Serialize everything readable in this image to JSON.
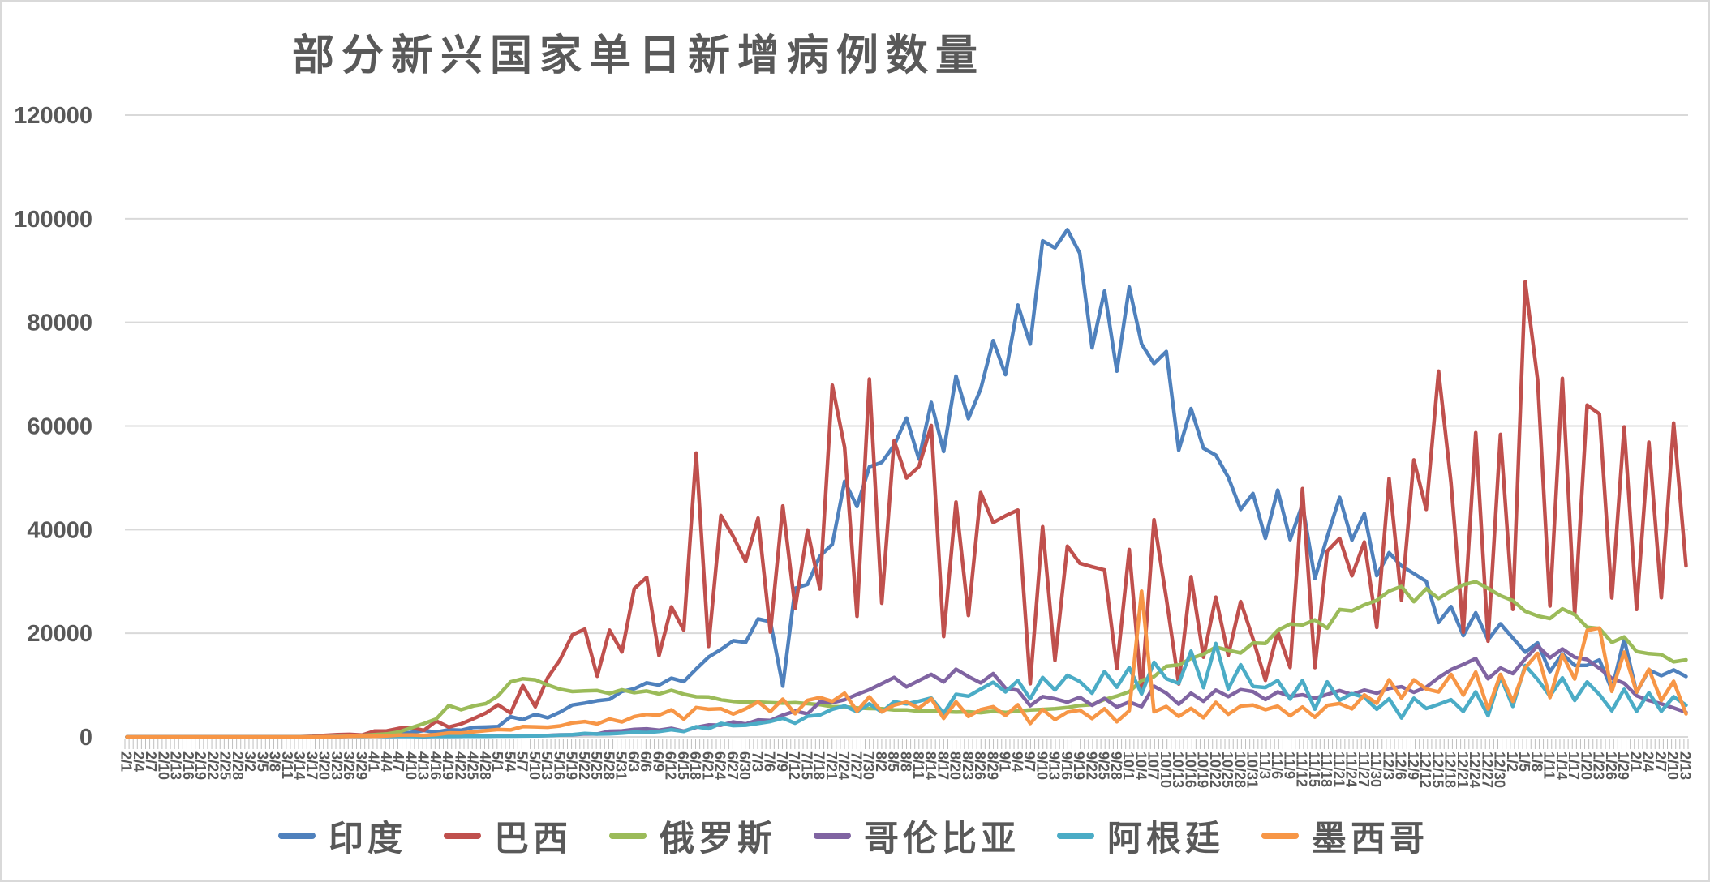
{
  "title": "部分新兴国家单日新增病例数量",
  "chart_data": {
    "type": "line",
    "title": "部分新兴国家单日新增病例数量",
    "xlabel": "",
    "ylabel": "",
    "ylim": [
      0,
      120000
    ],
    "y_ticks": [
      0,
      20000,
      40000,
      60000,
      80000,
      100000,
      120000
    ],
    "grid": "horizontal",
    "legend_position": "bottom",
    "x_labels": [
      "2/1",
      "2/4",
      "2/7",
      "2/10",
      "2/13",
      "2/16",
      "2/19",
      "2/22",
      "2/25",
      "2/28",
      "3/2",
      "3/5",
      "3/8",
      "3/11",
      "3/14",
      "3/17",
      "3/20",
      "3/23",
      "3/26",
      "3/29",
      "4/1",
      "4/4",
      "4/7",
      "4/10",
      "4/13",
      "4/16",
      "4/19",
      "4/22",
      "4/25",
      "4/28",
      "5/1",
      "5/4",
      "5/7",
      "5/10",
      "5/13",
      "5/16",
      "5/19",
      "5/22",
      "5/25",
      "5/28",
      "5/31",
      "6/3",
      "6/6",
      "6/9",
      "6/12",
      "6/15",
      "6/18",
      "6/21",
      "6/24",
      "6/27",
      "6/30",
      "7/3",
      "7/6",
      "7/9",
      "7/12",
      "7/15",
      "7/18",
      "7/21",
      "7/24",
      "7/27",
      "7/30",
      "8/2",
      "8/5",
      "8/8",
      "8/11",
      "8/14",
      "8/17",
      "8/20",
      "8/23",
      "8/26",
      "8/29",
      "9/1",
      "9/4",
      "9/7",
      "9/10",
      "9/13",
      "9/16",
      "9/19",
      "9/22",
      "9/25",
      "9/28",
      "10/1",
      "10/4",
      "10/7",
      "10/10",
      "10/13",
      "10/16",
      "10/19",
      "10/22",
      "10/25",
      "10/28",
      "10/31",
      "11/3",
      "11/6",
      "11/9",
      "11/12",
      "11/15",
      "11/18",
      "11/21",
      "11/24",
      "11/27",
      "11/30",
      "12/3",
      "12/6",
      "12/9",
      "12/12",
      "12/15",
      "12/18",
      "12/21",
      "12/24",
      "12/27",
      "12/30",
      "1/2",
      "1/5",
      "1/8",
      "1/11",
      "1/14",
      "1/17",
      "1/20",
      "1/23",
      "1/26",
      "1/29",
      "2/1",
      "2/4",
      "2/7",
      "2/10",
      "2/13"
    ],
    "series": [
      {
        "name": "印度",
        "color": "#4F81BD",
        "values": [
          0,
          0,
          0,
          0,
          0,
          0,
          0,
          0,
          0,
          0,
          1,
          5,
          10,
          10,
          20,
          30,
          60,
          100,
          120,
          180,
          400,
          500,
          570,
          870,
          1240,
          930,
          1370,
          1290,
          1840,
          1900,
          1990,
          3900,
          3340,
          4350,
          3700,
          4790,
          6150,
          6530,
          6980,
          7250,
          8780,
          9300,
          10440,
          9980,
          11320,
          10670,
          13100,
          15400,
          16870,
          18550,
          18250,
          22770,
          22250,
          9800,
          28700,
          29430,
          34880,
          37150,
          49310,
          44460,
          52120,
          52970,
          56280,
          61540,
          53600,
          64550,
          55080,
          69650,
          61410,
          67150,
          76470,
          69920,
          83340,
          75810,
          95740,
          94370,
          97890,
          93340,
          75080,
          86050,
          70590,
          86820,
          75830,
          72050,
          74380,
          55340,
          63370,
          55720,
          54370,
          50130,
          43890,
          46960,
          38310,
          47640,
          38070,
          44880,
          30550,
          38620,
          46230,
          37980,
          43080,
          31120,
          35550,
          32980,
          31520,
          30010,
          22070,
          25150,
          19550,
          23950,
          18730,
          21820,
          19080,
          16370,
          18140,
          12580,
          16040,
          13780,
          13820,
          14850,
          9100,
          18860,
          8580,
          12900,
          11830,
          12920,
          11650
        ]
      },
      {
        "name": "巴西",
        "color": "#C0504D",
        "values": [
          0,
          0,
          0,
          0,
          0,
          0,
          0,
          0,
          0,
          0,
          0,
          0,
          0,
          0,
          50,
          110,
          290,
          420,
          480,
          350,
          1120,
          1150,
          1660,
          1780,
          1260,
          3060,
          1890,
          2500,
          3500,
          4600,
          6200,
          4600,
          9900,
          5800,
          11400,
          14900,
          19700,
          20800,
          11700,
          20600,
          16400,
          28600,
          30800,
          15700,
          25100,
          20600,
          54770,
          17460,
          42720,
          38690,
          33850,
          42220,
          20230,
          44570,
          24830,
          39920,
          28530,
          67860,
          55890,
          23280,
          69070,
          25800,
          57150,
          49970,
          52160,
          60090,
          19370,
          45320,
          23420,
          47160,
          41350,
          42660,
          43770,
          10270,
          40560,
          14770,
          36820,
          33520,
          32820,
          32230,
          13160,
          36160,
          8460,
          41910,
          26750,
          10220,
          30910,
          15380,
          26980,
          15730,
          26110,
          18950,
          10920,
          20310,
          13390,
          47900,
          13370,
          35840,
          38310,
          31100,
          37610,
          21140,
          49860,
          26360,
          53450,
          43900,
          70570,
          49090,
          20190,
          58720,
          18480,
          58380,
          24610,
          87840,
          68920,
          25260,
          69200,
          23670,
          64030,
          62330,
          26820,
          59830,
          24590,
          56870,
          26850,
          60570,
          33000
        ]
      },
      {
        "name": "俄罗斯",
        "color": "#9BBB59",
        "values": [
          0,
          0,
          0,
          0,
          0,
          0,
          0,
          0,
          0,
          0,
          0,
          0,
          0,
          0,
          14,
          30,
          50,
          60,
          180,
          270,
          440,
          580,
          950,
          1790,
          2560,
          3450,
          6060,
          5240,
          5970,
          6410,
          7930,
          10630,
          11230,
          11010,
          10030,
          9200,
          8760,
          8890,
          8950,
          8370,
          9090,
          8540,
          8860,
          8270,
          8990,
          8250,
          7750,
          7720,
          7170,
          6850,
          6690,
          6710,
          6610,
          6510,
          6620,
          6420,
          6230,
          5840,
          5810,
          5600,
          5480,
          5430,
          5200,
          5210,
          4950,
          5060,
          4890,
          4780,
          4850,
          4680,
          4940,
          4730,
          5010,
          5210,
          5310,
          5450,
          5670,
          6070,
          6220,
          7220,
          7870,
          8720,
          10890,
          11620,
          13630,
          13870,
          15150,
          15980,
          17340,
          16710,
          16200,
          18140,
          18020,
          20580,
          21800,
          21600,
          22570,
          20980,
          24580,
          24330,
          25490,
          26340,
          28150,
          29040,
          26100,
          28590,
          26690,
          28210,
          29350,
          29940,
          28670,
          27250,
          26300,
          24250,
          23350,
          22850,
          24720,
          23590,
          21150,
          20920,
          18240,
          19290,
          16470,
          16070,
          15900,
          14490,
          14860
        ]
      },
      {
        "name": "哥伦比亚",
        "color": "#8064A2",
        "values": [
          0,
          0,
          0,
          0,
          0,
          0,
          0,
          0,
          0,
          0,
          0,
          0,
          0,
          0,
          0,
          0,
          30,
          60,
          90,
          90,
          110,
          80,
          100,
          130,
          70,
          110,
          100,
          90,
          180,
          110,
          250,
          240,
          280,
          220,
          270,
          390,
          390,
          580,
          570,
          1100,
          1150,
          1450,
          1550,
          1300,
          1650,
          1110,
          1850,
          2300,
          2250,
          2880,
          2480,
          3270,
          3170,
          4210,
          4990,
          4450,
          6740,
          6600,
          7160,
          8180,
          9100,
          10280,
          11470,
          9650,
          10880,
          12070,
          10610,
          13060,
          11640,
          10420,
          12200,
          9420,
          8980,
          6010,
          7770,
          7360,
          6700,
          7630,
          6100,
          7430,
          5780,
          6730,
          5840,
          9800,
          8430,
          6310,
          8430,
          6870,
          9020,
          7770,
          9120,
          8750,
          7220,
          8690,
          7810,
          8120,
          7440,
          8180,
          8930,
          8160,
          9050,
          8430,
          9360,
          9690,
          8600,
          9600,
          11440,
          12970,
          13990,
          15130,
          11210,
          13280,
          12210,
          15060,
          17570,
          15250,
          16970,
          15360,
          14940,
          13230,
          11310,
          10350,
          7950,
          7020,
          6390,
          5580,
          4750
        ]
      },
      {
        "name": "阿根廷",
        "color": "#4BACC6",
        "values": [
          0,
          0,
          0,
          0,
          0,
          0,
          0,
          0,
          0,
          0,
          0,
          0,
          0,
          0,
          0,
          0,
          30,
          90,
          90,
          75,
          90,
          100,
          90,
          80,
          70,
          130,
          100,
          110,
          110,
          120,
          150,
          150,
          170,
          210,
          250,
          340,
          440,
          650,
          550,
          600,
          720,
          930,
          840,
          1050,
          1390,
          1050,
          1950,
          1580,
          2600,
          2180,
          2260,
          2590,
          2980,
          3600,
          2650,
          3990,
          4230,
          5340,
          5980,
          4870,
          6380,
          4820,
          6790,
          6360,
          6900,
          7500,
          4550,
          8220,
          7860,
          9230,
          10550,
          8680,
          10880,
          7360,
          11470,
          9050,
          11890,
          10700,
          8430,
          12620,
          9590,
          13380,
          8290,
          14390,
          11240,
          10320,
          16550,
          9520,
          18030,
          9250,
          13920,
          9750,
          9530,
          10880,
          7290,
          10880,
          5350,
          10620,
          7090,
          8320,
          7650,
          5330,
          7350,
          3650,
          7460,
          5470,
          6270,
          7180,
          4910,
          8690,
          4080,
          11590,
          5880,
          13790,
          11090,
          7850,
          11400,
          7020,
          10600,
          8160,
          5030,
          9190,
          4930,
          8510,
          4950,
          7740,
          6110
        ]
      },
      {
        "name": "墨西哥",
        "color": "#F79646",
        "values": [
          0,
          0,
          0,
          0,
          0,
          0,
          0,
          0,
          0,
          0,
          0,
          0,
          0,
          0,
          0,
          0,
          40,
          65,
          110,
          145,
          120,
          180,
          350,
          375,
          290,
          450,
          760,
          730,
          970,
          1220,
          1430,
          1350,
          1980,
          1940,
          1860,
          2110,
          2710,
          2960,
          2480,
          3460,
          2890,
          3910,
          4350,
          4200,
          5220,
          3430,
          5660,
          5340,
          5440,
          4410,
          5430,
          6740,
          4900,
          7280,
          4480,
          7050,
          7610,
          6860,
          8440,
          4970,
          7730,
          4850,
          6140,
          6720,
          5560,
          7370,
          3570,
          6770,
          3950,
          5270,
          5820,
          4130,
          6200,
          2580,
          5310,
          3340,
          4770,
          5170,
          3540,
          5450,
          2920,
          5050,
          28120,
          4830,
          5860,
          3940,
          5510,
          3700,
          6660,
          4360,
          5940,
          6150,
          5250,
          5930,
          4090,
          5750,
          3780,
          6070,
          6430,
          5420,
          8110,
          6470,
          11030,
          7460,
          11010,
          9250,
          8670,
          12070,
          8050,
          12510,
          5370,
          12060,
          6860,
          13350,
          16110,
          7590,
          15870,
          11170,
          20550,
          21010,
          8780,
          16370,
          8640,
          13050,
          7030,
          10740,
          4450
        ]
      }
    ]
  },
  "legend": {
    "items": [
      "印度",
      "巴西",
      "俄罗斯",
      "哥伦比亚",
      "阿根廷",
      "墨西哥"
    ]
  }
}
